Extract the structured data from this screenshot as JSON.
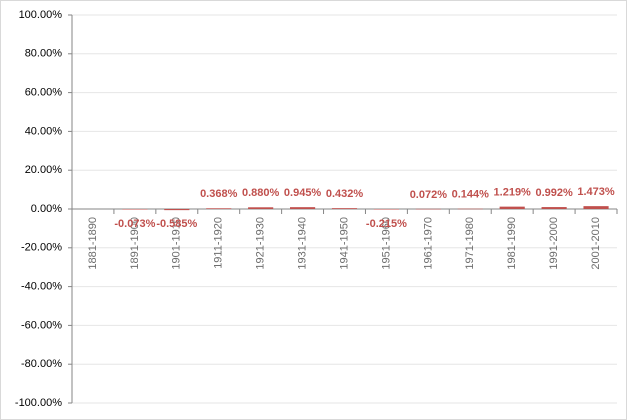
{
  "chart_data": {
    "type": "bar",
    "categories": [
      "1881-1890",
      "1891-1900",
      "1901-1910",
      "1911-1920",
      "1921-1930",
      "1931-1940",
      "1941-1950",
      "1951-1960",
      "1961-1970",
      "1971-1980",
      "1981-1990",
      "1991-2000",
      "2001-2010"
    ],
    "values": [
      null,
      -0.073,
      -0.585,
      0.368,
      0.88,
      0.945,
      0.432,
      -0.215,
      0.072,
      0.144,
      1.219,
      0.992,
      1.473
    ],
    "value_labels": [
      null,
      "-0.073%",
      "-0.585%",
      "0.368%",
      "0.880%",
      "0.945%",
      "0.432%",
      "-0.215%",
      "0.072%",
      "0.144%",
      "1.219%",
      "0.992%",
      "1.473%"
    ],
    "color": "#c0504d",
    "ylim": [
      -100,
      100
    ],
    "yticks": [
      {
        "value": -100,
        "label": "-100.00%"
      },
      {
        "value": -80,
        "label": "-80.00%"
      },
      {
        "value": -60,
        "label": "-60.00%"
      },
      {
        "value": -40,
        "label": "-40.00%"
      },
      {
        "value": -20,
        "label": "-20.00%"
      },
      {
        "value": 0,
        "label": "0.00%"
      },
      {
        "value": 20,
        "label": "20.00%"
      },
      {
        "value": 40,
        "label": "40.00%"
      },
      {
        "value": 60,
        "label": "60.00%"
      },
      {
        "value": 80,
        "label": "80.00%"
      },
      {
        "value": 100,
        "label": "100.00%"
      }
    ],
    "grid": true
  }
}
